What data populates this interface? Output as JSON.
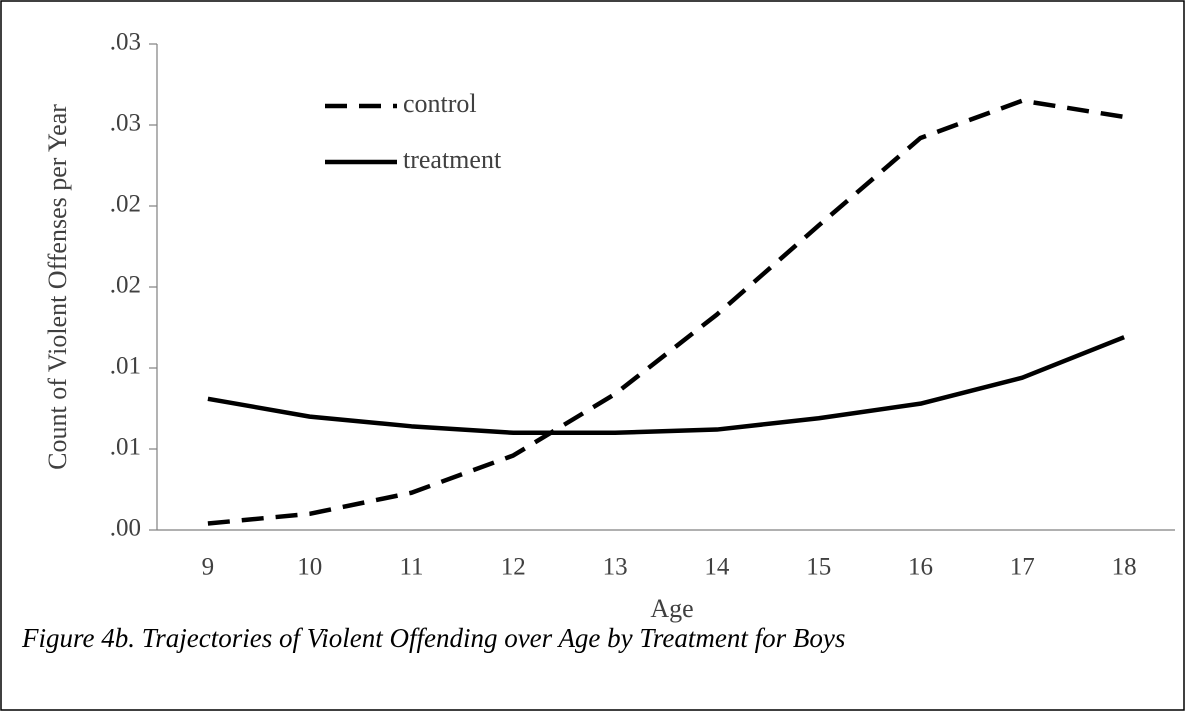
{
  "chart_data": {
    "type": "line",
    "ylabel": "Count of Violent Offenses per Year",
    "xlabel": "Age",
    "caption": "Figure 4b. Trajectories of Violent Offending over Age by Treatment for Boys",
    "categories": [
      "9",
      "10",
      "11",
      "12",
      "13",
      "14",
      "15",
      "16",
      "17",
      "18"
    ],
    "series": [
      {
        "name": "control",
        "color": "#000000",
        "dash": true,
        "values": [
          0.0004,
          0.001,
          0.0023,
          0.0046,
          0.0084,
          0.0133,
          0.0188,
          0.0242,
          0.0265,
          0.0255
        ]
      },
      {
        "name": "treatment",
        "color": "#000000",
        "dash": false,
        "values": [
          0.0081,
          0.007,
          0.0064,
          0.006,
          0.006,
          0.0062,
          0.0069,
          0.0078,
          0.0094,
          0.0119
        ]
      }
    ],
    "ylim": [
      0,
      0.03
    ],
    "yticks": [
      {
        "value": 0,
        "label": ".00"
      },
      {
        "value": 0.005,
        "label": ".01"
      },
      {
        "value": 0.01,
        "label": ".01"
      },
      {
        "value": 0.015,
        "label": ".02"
      },
      {
        "value": 0.02,
        "label": ".02"
      },
      {
        "value": 0.025,
        "label": ".03"
      },
      {
        "value": 0.03,
        "label": ".03"
      }
    ],
    "legend": "upper left"
  }
}
